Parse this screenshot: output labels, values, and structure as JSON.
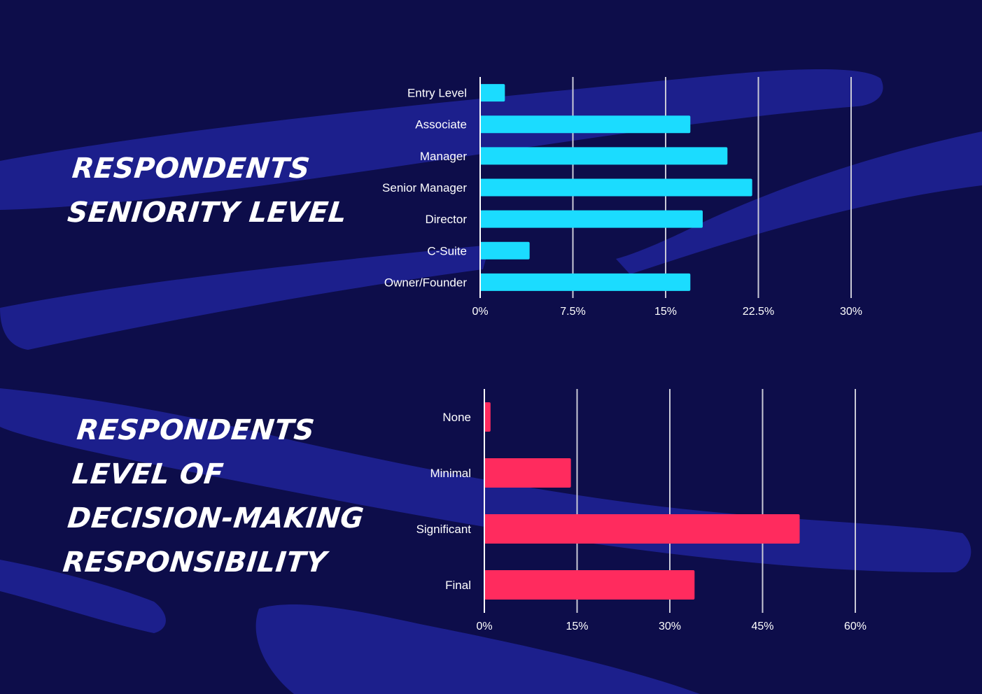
{
  "colors": {
    "background": "#0d0d4a",
    "brush": "#1c1f8c",
    "seniority_bar": "#1bdcff",
    "decision_bar": "#ff2b5e",
    "gridline": "#c9c9d6",
    "text": "#ffffff"
  },
  "titles": {
    "seniority": [
      "Respondents",
      "Seniority Level"
    ],
    "decision": [
      "Respondents",
      "Level of",
      "Decision-Making",
      "Responsibility"
    ]
  },
  "chart_data": [
    {
      "type": "bar",
      "orientation": "horizontal",
      "title": "Respondents Seniority Level",
      "categories": [
        "Entry Level",
        "Associate",
        "Manager",
        "Senior Manager",
        "Director",
        "C-Suite",
        "Owner/Founder"
      ],
      "values": [
        2.0,
        17.0,
        20.0,
        22.0,
        18.0,
        4.0,
        17.0
      ],
      "value_unit": "%",
      "xlim": [
        0,
        30
      ],
      "ticks": [
        "0%",
        "7.5%",
        "15%",
        "22.5%",
        "30%"
      ],
      "tick_values": [
        0,
        7.5,
        15,
        22.5,
        30
      ],
      "grid": true
    },
    {
      "type": "bar",
      "orientation": "horizontal",
      "title": "Respondents Level of Decision-Making Responsibility",
      "categories": [
        "None",
        "Minimal",
        "Significant",
        "Final"
      ],
      "values": [
        1.0,
        14.0,
        51.0,
        34.0
      ],
      "value_unit": "%",
      "xlim": [
        0,
        60
      ],
      "ticks": [
        "0%",
        "15%",
        "30%",
        "45%",
        "60%"
      ],
      "tick_values": [
        0,
        15,
        30,
        45,
        60
      ],
      "grid": true
    }
  ]
}
